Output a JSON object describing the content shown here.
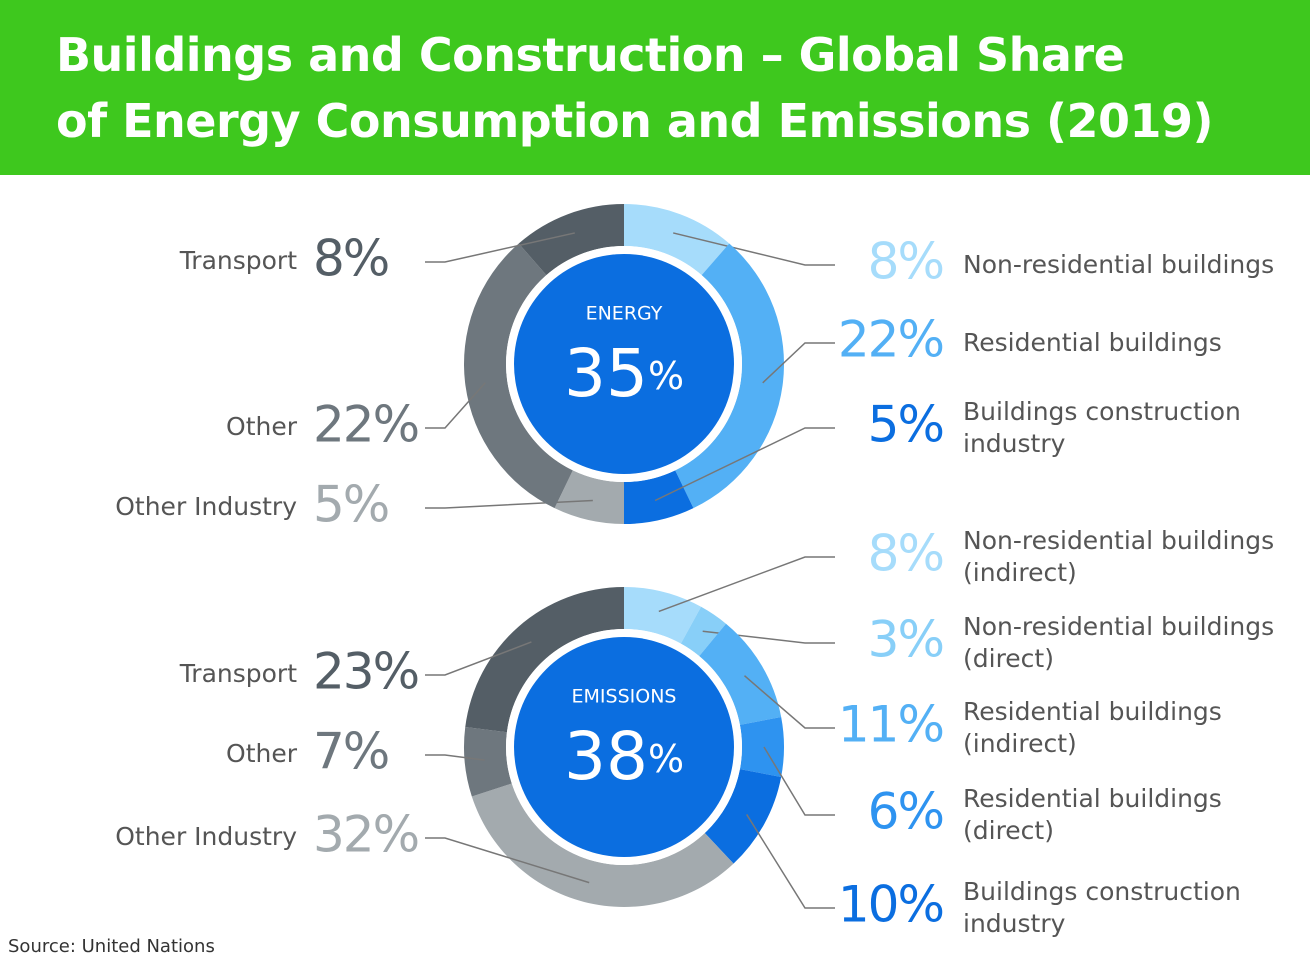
{
  "title": [
    "Buildings and Construction – Global Share",
    "of Energy Consumption and Emissions (2019)"
  ],
  "source": "Source: United Nations",
  "chart_data": [
    {
      "type": "pie",
      "center_label": "ENERGY",
      "center_value": "35%",
      "categories": [
        "Non-residential buildings",
        "Residential buildings",
        "Buildings construction industry",
        "Other Industry",
        "Other",
        "Transport"
      ],
      "values": [
        8,
        22,
        5,
        5,
        22,
        8
      ],
      "value_labels": [
        "8%",
        "22%",
        "5%",
        "5%",
        "22%",
        "8%"
      ],
      "colors": [
        "#a6dcfb",
        "#53b0f5",
        "#0b6ee0",
        "#a3aaae",
        "#6e777e",
        "#545e66"
      ]
    },
    {
      "type": "pie",
      "center_label": "EMISSIONS",
      "center_value": "38%",
      "categories": [
        "Non-residential buildings (indirect)",
        "Non-residential buildings (direct)",
        "Residential buildings (indirect)",
        "Residential buildings (direct)",
        "Buildings construction industry",
        "Other Industry",
        "Other",
        "Transport"
      ],
      "values": [
        8,
        3,
        11,
        6,
        10,
        32,
        7,
        23
      ],
      "value_labels": [
        "8%",
        "3%",
        "11%",
        "6%",
        "10%",
        "32%",
        "7%",
        "23%"
      ],
      "colors": [
        "#a6dcfb",
        "#88cff8",
        "#53b0f5",
        "#2e93f0",
        "#0b6ee0",
        "#a3aaae",
        "#6e777e",
        "#545e66"
      ]
    }
  ]
}
